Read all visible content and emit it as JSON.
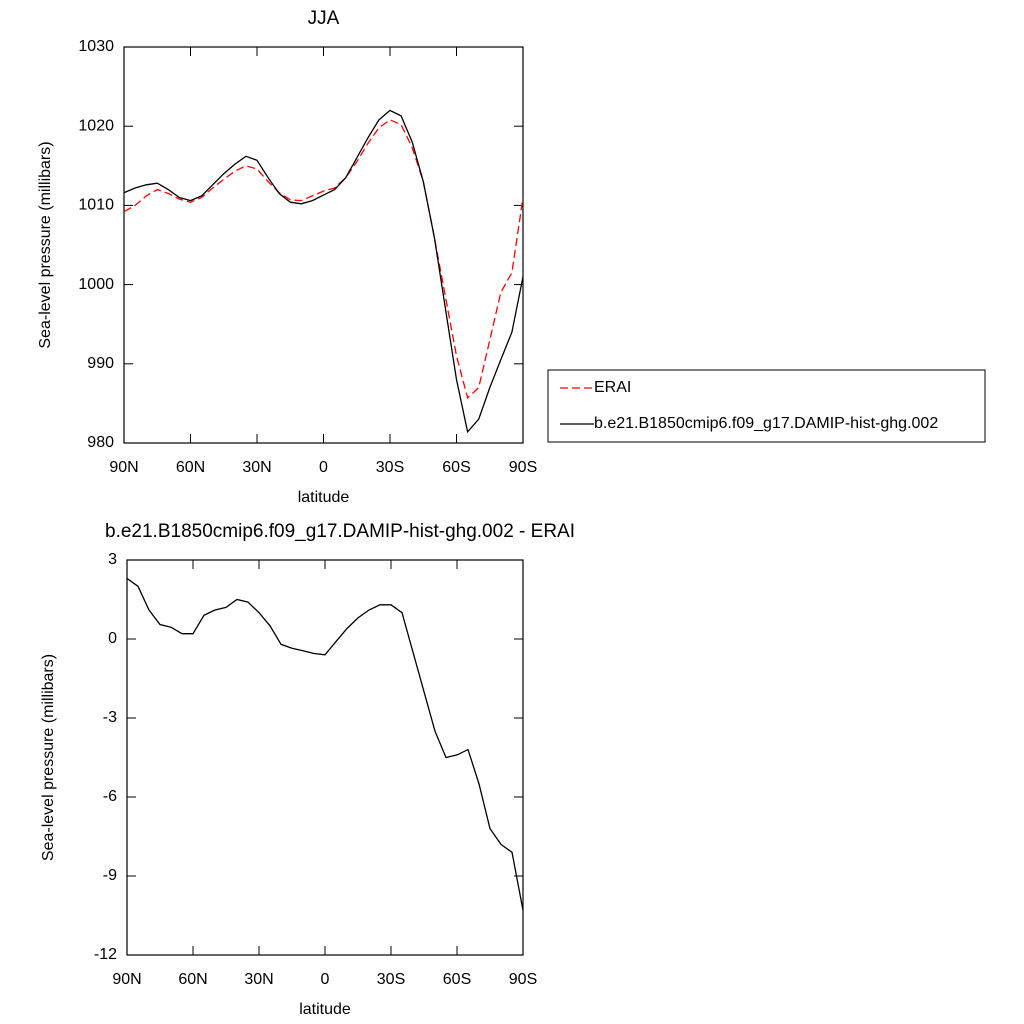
{
  "chart_data": [
    {
      "type": "line",
      "title": "JJA",
      "xlabel": "latitude",
      "ylabel": "Sea-level pressure (millibars)",
      "x": [
        90,
        85,
        80,
        75,
        70,
        65,
        60,
        55,
        50,
        45,
        40,
        35,
        30,
        25,
        20,
        15,
        10,
        5,
        0,
        -5,
        -10,
        -15,
        -20,
        -25,
        -30,
        -35,
        -40,
        -45,
        -50,
        -55,
        -60,
        -65,
        -70,
        -75,
        -80,
        -85,
        -90
      ],
      "series": [
        {
          "name": "ERAI",
          "color": "#ff0000",
          "dash": true,
          "values": [
            1009.2,
            1010,
            1011.2,
            1012,
            1011.5,
            1010.8,
            1010.4,
            1011,
            1012.2,
            1013.3,
            1014.3,
            1015,
            1014.6,
            1013,
            1011.6,
            1010.7,
            1010.6,
            1011.2,
            1011.8,
            1012.2,
            1013.5,
            1015.5,
            1017.8,
            1019.8,
            1020.8,
            1020.2,
            1017.3,
            1013,
            1006,
            998.5,
            991,
            985.7,
            987,
            993,
            999,
            1001.5,
            1011
          ]
        },
        {
          "name": "b.e21.B1850cmip6.f09_g17.DAMIP-hist-ghg.002",
          "color": "#000000",
          "dash": false,
          "values": [
            1011.6,
            1012.2,
            1012.6,
            1012.8,
            1012,
            1011,
            1010.6,
            1011.2,
            1012.6,
            1014,
            1015.2,
            1016.2,
            1015.7,
            1013.5,
            1011.5,
            1010.4,
            1010.2,
            1010.6,
            1011.3,
            1012,
            1013.5,
            1016,
            1018.5,
            1020.8,
            1022,
            1021.3,
            1018,
            1013,
            1006,
            997,
            988,
            981.4,
            983,
            987,
            990.5,
            994,
            1001
          ]
        }
      ],
      "xlim": [
        90,
        -90
      ],
      "xticks": [
        {
          "value": 90,
          "label": "90N"
        },
        {
          "value": 60,
          "label": "60N"
        },
        {
          "value": 30,
          "label": "30N"
        },
        0,
        {
          "value": -30,
          "label": "30S"
        },
        {
          "value": -60,
          "label": "60S"
        },
        {
          "value": -90,
          "label": "90S"
        }
      ],
      "ylim": [
        980,
        1030
      ],
      "yticks": [
        980,
        990,
        1000,
        1010,
        1020,
        1030
      ],
      "grid": false,
      "legend": "right"
    },
    {
      "type": "line",
      "title": "b.e21.B1850cmip6.f09_g17.DAMIP-hist-ghg.002 - ERAI",
      "xlabel": "latitude",
      "ylabel": "Sea-level pressure (millibars)",
      "x": [
        90,
        85,
        80,
        75,
        70,
        65,
        60,
        55,
        50,
        45,
        40,
        35,
        30,
        25,
        20,
        15,
        10,
        5,
        0,
        -5,
        -10,
        -15,
        -20,
        -25,
        -30,
        -35,
        -40,
        -45,
        -50,
        -55,
        -60,
        -65,
        -70,
        -75,
        -80,
        -85,
        -90
      ],
      "series": [
        {
          "color": "#000000",
          "dash": false,
          "values": [
            2.3,
            2.0,
            1.1,
            0.55,
            0.45,
            0.2,
            0.2,
            0.9,
            1.1,
            1.2,
            1.5,
            1.4,
            1.0,
            0.5,
            -0.2,
            -0.35,
            -0.45,
            -0.55,
            -0.6,
            -0.1,
            0.4,
            0.8,
            1.1,
            1.3,
            1.3,
            1.0,
            -0.5,
            -2.0,
            -3.5,
            -4.5,
            -4.4,
            -4.2,
            -5.5,
            -7.2,
            -7.8,
            -8.1,
            -10.3
          ]
        }
      ],
      "xlim": [
        90,
        -90
      ],
      "xticks": [
        {
          "value": 90,
          "label": "90N"
        },
        {
          "value": 60,
          "label": "60N"
        },
        {
          "value": 30,
          "label": "30N"
        },
        0,
        {
          "value": -30,
          "label": "30S"
        },
        {
          "value": -60,
          "label": "60S"
        },
        {
          "value": -90,
          "label": "90S"
        }
      ],
      "ylim": [
        -12,
        3
      ],
      "yticks": [
        -12,
        -9,
        -6,
        -3,
        0,
        3
      ],
      "grid": false
    }
  ]
}
